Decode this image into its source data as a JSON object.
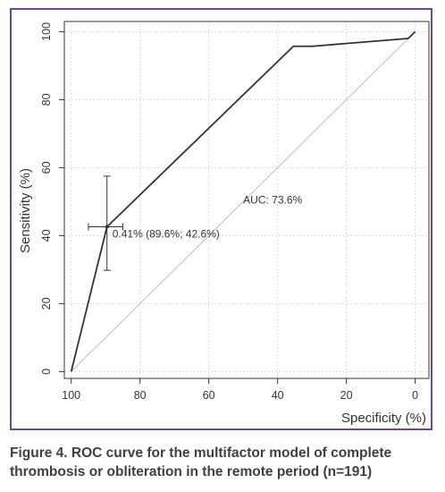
{
  "chart_data": {
    "type": "line",
    "title": "",
    "xlabel": "Specificity (%)",
    "ylabel": "Sensitivity (%)",
    "x_reversed": true,
    "xlim": [
      102,
      -4
    ],
    "ylim": [
      -2,
      103
    ],
    "x_ticks": [
      100,
      80,
      60,
      40,
      20,
      0
    ],
    "y_ticks": [
      0,
      20,
      40,
      60,
      80,
      100
    ],
    "grid": true,
    "series": [
      {
        "x": [
          100,
          89.6,
          35.4,
          30,
          2,
          0
        ],
        "y": [
          0,
          42.6,
          95.7,
          95.7,
          98,
          100
        ],
        "color": "#333333"
      }
    ],
    "reference_line": {
      "x": [
        100,
        0
      ],
      "y": [
        0,
        100
      ],
      "color": "#bdbdbd"
    },
    "threshold_point": {
      "x": 89.6,
      "y": 42.6,
      "x_err": [
        85,
        95
      ],
      "y_err": [
        29.8,
        57.5
      ],
      "label": "0.41% (89.6%; 42.6%)"
    },
    "annotation": {
      "text": "AUC: 73.6%",
      "x": 50,
      "y": 49.5
    }
  },
  "caption": {
    "line1": "Figure 4. ROC curve for the multifactor model of complete",
    "line2": "thrombosis or obliteration in the remote period (n=191)"
  },
  "colors": {
    "frame": "#6b4c8a",
    "curve": "#333333",
    "diagonal": "#bdbdbd",
    "grid": "#dddddd",
    "caption": "#3f3f3f"
  }
}
